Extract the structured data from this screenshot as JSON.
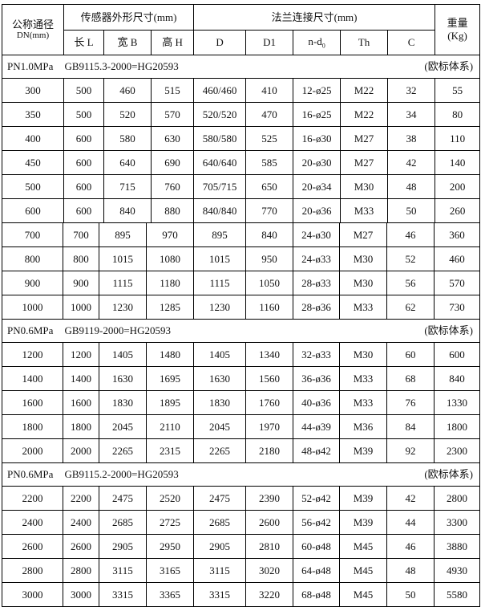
{
  "header": {
    "dn_label": "公称通径",
    "dn_unit": "DN(mm)",
    "sensor_group": "传感器外形尺寸(mm)",
    "flange_group": "法兰连接尺寸(mm)",
    "weight_label": "重量",
    "weight_unit": "(Kg)",
    "sensor_cols": [
      "长 L",
      "宽 B",
      "高 H"
    ],
    "flange_cols": [
      "D",
      "D1",
      "n-d",
      "Th",
      "C"
    ],
    "nd_subscript": "0"
  },
  "sections": [
    {
      "pressure": "PN1.0MPa",
      "standard": "GB9115.3-2000=HG20593",
      "system": "(欧标体系)",
      "rows": [
        [
          "300",
          "500",
          "460",
          "515",
          "460/460",
          "410",
          "12-ø25",
          "M22",
          "32",
          "55"
        ],
        [
          "350",
          "500",
          "520",
          "570",
          "520/520",
          "470",
          "16-ø25",
          "M22",
          "34",
          "80"
        ],
        [
          "400",
          "600",
          "580",
          "630",
          "580/580",
          "525",
          "16-ø30",
          "M27",
          "38",
          "110"
        ],
        [
          "450",
          "600",
          "640",
          "690",
          "640/640",
          "585",
          "20-ø30",
          "M27",
          "42",
          "140"
        ],
        [
          "500",
          "600",
          "715",
          "760",
          "705/715",
          "650",
          "20-ø34",
          "M30",
          "48",
          "200"
        ],
        [
          "600",
          "600",
          "840",
          "880",
          "840/840",
          "770",
          "20-ø36",
          "M33",
          "50",
          "260"
        ],
        [
          "700",
          "700",
          "895",
          "970",
          "895",
          "840",
          "24-ø30",
          "M27",
          "46",
          "360"
        ],
        [
          "800",
          "800",
          "1015",
          "1080",
          "1015",
          "950",
          "24-ø33",
          "M30",
          "52",
          "460"
        ],
        [
          "900",
          "900",
          "1115",
          "1180",
          "1115",
          "1050",
          "28-ø33",
          "M30",
          "56",
          "570"
        ],
        [
          "1000",
          "1000",
          "1230",
          "1285",
          "1230",
          "1160",
          "28-ø36",
          "M33",
          "62",
          "730"
        ]
      ]
    },
    {
      "pressure": "PN0.6MPa",
      "standard": "GB9119-2000=HG20593",
      "system": "(欧标体系)",
      "rows": [
        [
          "1200",
          "1200",
          "1405",
          "1480",
          "1405",
          "1340",
          "32-ø33",
          "M30",
          "60",
          "600"
        ],
        [
          "1400",
          "1400",
          "1630",
          "1695",
          "1630",
          "1560",
          "36-ø36",
          "M33",
          "68",
          "840"
        ],
        [
          "1600",
          "1600",
          "1830",
          "1895",
          "1830",
          "1760",
          "40-ø36",
          "M33",
          "76",
          "1330"
        ],
        [
          "1800",
          "1800",
          "2045",
          "2110",
          "2045",
          "1970",
          "44-ø39",
          "M36",
          "84",
          "1800"
        ],
        [
          "2000",
          "2000",
          "2265",
          "2315",
          "2265",
          "2180",
          "48-ø42",
          "M39",
          "92",
          "2300"
        ]
      ]
    },
    {
      "pressure": "PN0.6MPa",
      "standard": "GB9115.2-2000=HG20593",
      "system": "(欧标体系)",
      "rows": [
        [
          "2200",
          "2200",
          "2475",
          "2520",
          "2475",
          "2390",
          "52-ø42",
          "M39",
          "42",
          "2800"
        ],
        [
          "2400",
          "2400",
          "2685",
          "2725",
          "2685",
          "2600",
          "56-ø42",
          "M39",
          "44",
          "3300"
        ],
        [
          "2600",
          "2600",
          "2905",
          "2950",
          "2905",
          "2810",
          "60-ø48",
          "M45",
          "46",
          "3880"
        ],
        [
          "2800",
          "2800",
          "3115",
          "3165",
          "3115",
          "3020",
          "64-ø48",
          "M45",
          "48",
          "4930"
        ],
        [
          "3000",
          "3000",
          "3315",
          "3365",
          "3315",
          "3220",
          "68-ø48",
          "M45",
          "50",
          "5580"
        ]
      ]
    }
  ]
}
